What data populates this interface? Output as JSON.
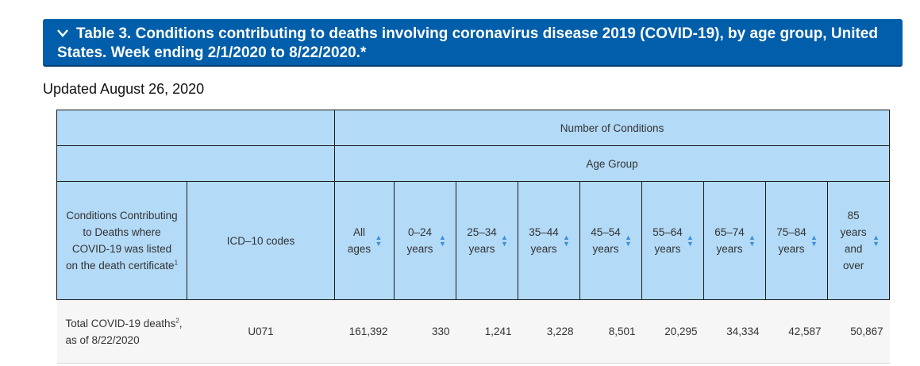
{
  "banner": {
    "title": "Table 3. Conditions contributing to deaths involving coronavirus disease 2019 (COVID-19), by age group, United States. Week ending 2/1/2020 to 8/22/2020.*"
  },
  "updated": "Updated August 26, 2020",
  "table": {
    "group_header": "Number of Conditions",
    "subgroup_header": "Age Group",
    "conditions_header": "Conditions Contributing to Deaths where COVID-19 was listed on the death certificate",
    "conditions_header_sup": "1",
    "icd_header": "ICD–10 codes",
    "age_columns": [
      "All ages",
      "0–24 years",
      "25–34 years",
      "35–44 years",
      "45–54 years",
      "55–64 years",
      "65–74 years",
      "75–84 years",
      "85 years and over"
    ],
    "rows": [
      {
        "condition_pre": "Total COVID-19 deaths",
        "condition_sup": "2",
        "condition_post": ", as of 8/22/2020",
        "icd": "U071",
        "values": [
          "161,392",
          "330",
          "1,241",
          "3,228",
          "8,501",
          "20,295",
          "34,334",
          "42,587",
          "50,867"
        ]
      }
    ]
  },
  "icons": {
    "collapse": "chevron-down-icon",
    "sort": "sort-icon"
  },
  "colors": {
    "banner": "#005eaa",
    "header_bg": "#b3daf7",
    "sort_arrows": "#3a8fd6"
  }
}
